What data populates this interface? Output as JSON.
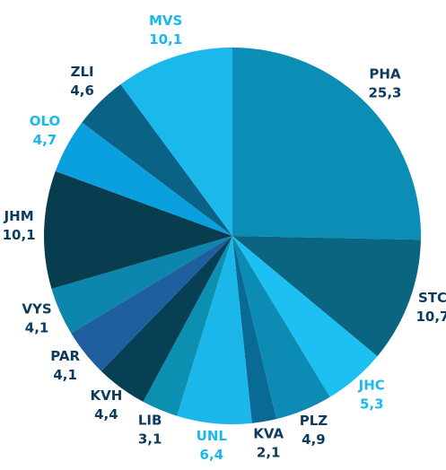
{
  "chart_data": {
    "type": "pie",
    "categories": [
      "PHA",
      "STC",
      "JHC",
      "PLZ",
      "KVA",
      "UNL",
      "LIB",
      "KVH",
      "PAR",
      "VYS",
      "JHM",
      "OLO",
      "ZLI",
      "MVS"
    ],
    "values": [
      25.3,
      10.7,
      5.3,
      4.9,
      2.1,
      6.4,
      3.1,
      4.4,
      4.1,
      4.1,
      10.1,
      4.7,
      4.6,
      10.1
    ],
    "value_labels": [
      "25,3",
      "10,7",
      "5,3",
      "4,9",
      "2,1",
      "6,4",
      "3,1",
      "4,4",
      "4,1",
      "4,1",
      "10,1",
      "4,7",
      "4,6",
      "10,1"
    ],
    "colors": [
      "#0b8db6",
      "#0a6581",
      "#1cc0f2",
      "#0c8cb4",
      "#0a6a96",
      "#1bb7ea",
      "#0b90b1",
      "#073f55",
      "#1f5f9f",
      "#0c86ac",
      "#073d4f",
      "#0aa0e0",
      "#0a6287",
      "#1bb8ec"
    ],
    "label_colors": [
      "#0d3b5e",
      "#0d3b5e",
      "#1ab8ec",
      "#0d3b5e",
      "#0d3b5e",
      "#1ab8ec",
      "#0d3b5e",
      "#0d3b5e",
      "#0d3b5e",
      "#0d3b5e",
      "#0d3b5e",
      "#1ab8ec",
      "#0d3b5e",
      "#1ab8ec"
    ]
  }
}
